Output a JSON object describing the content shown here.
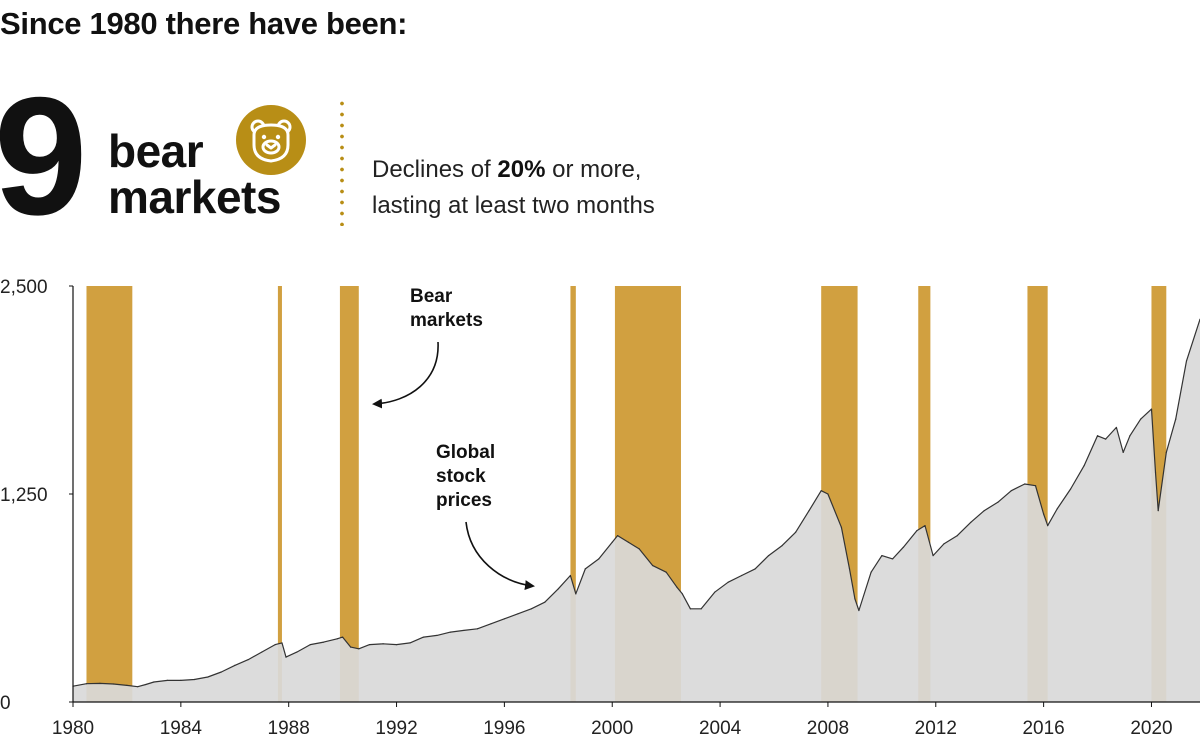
{
  "header": {
    "title": "Since 1980 there have been:",
    "count": "9",
    "count_label_line1": "bear",
    "count_label_line2": "markets",
    "definition_prefix": "Declines of ",
    "definition_bold": "20%",
    "definition_suffix": " or more,",
    "definition_line2": "lasting at least two months"
  },
  "colors": {
    "bear_band": "#d1a040",
    "price_area": "#d9d9d9",
    "price_line": "#333333",
    "accent": "#b88e16"
  },
  "chart_data": {
    "type": "area",
    "title": "",
    "xlabel": "",
    "ylabel": "",
    "xlim": [
      1980,
      2021.8
    ],
    "ylim": [
      0,
      2500
    ],
    "x_ticks": [
      1980,
      1984,
      1988,
      1992,
      1996,
      2000,
      2004,
      2008,
      2012,
      2016,
      2020
    ],
    "y_ticks": [
      {
        "value": 0,
        "label": "0"
      },
      {
        "value": 1250,
        "label": "1,250"
      },
      {
        "value": 2500,
        "label": "2,500"
      }
    ],
    "grid": false,
    "bear_markets": [
      {
        "start": 1980.5,
        "end": 1982.2
      },
      {
        "start": 1987.6,
        "end": 1987.75
      },
      {
        "start": 1989.9,
        "end": 1990.6
      },
      {
        "start": 1998.45,
        "end": 1998.65
      },
      {
        "start": 2000.1,
        "end": 2002.55
      },
      {
        "start": 2007.75,
        "end": 2009.1
      },
      {
        "start": 2011.35,
        "end": 2011.8
      },
      {
        "start": 2015.4,
        "end": 2016.15
      },
      {
        "start": 2020.0,
        "end": 2020.55
      }
    ],
    "series": [
      {
        "x": [
          1980.0,
          1980.5,
          1981.0,
          1981.5,
          1982.0,
          1982.4,
          1982.7,
          1983.0,
          1983.5,
          1984.0,
          1984.5,
          1985.0,
          1985.5,
          1986.0,
          1986.5,
          1987.0,
          1987.5,
          1987.75,
          1987.9,
          1988.3,
          1988.8,
          1989.3,
          1989.8,
          1990.0,
          1990.3,
          1990.6,
          1991.0,
          1991.5,
          1992.0,
          1992.5,
          1993.0,
          1993.5,
          1994.0,
          1994.5,
          1995.0,
          1995.5,
          1996.0,
          1996.5,
          1997.0,
          1997.5,
          1998.0,
          1998.45,
          1998.65,
          1999.0,
          1999.5,
          2000.0,
          2000.2,
          2000.6,
          2001.0,
          2001.5,
          2002.0,
          2002.4,
          2002.6,
          2002.9,
          2003.3,
          2003.8,
          2004.3,
          2004.8,
          2005.3,
          2005.8,
          2006.3,
          2006.8,
          2007.3,
          2007.75,
          2008.0,
          2008.5,
          2008.8,
          2009.0,
          2009.15,
          2009.6,
          2010.0,
          2010.4,
          2010.8,
          2011.3,
          2011.6,
          2011.9,
          2012.3,
          2012.8,
          2013.3,
          2013.8,
          2014.3,
          2014.8,
          2015.3,
          2015.7,
          2016.0,
          2016.15,
          2016.5,
          2017.0,
          2017.5,
          2018.0,
          2018.3,
          2018.7,
          2018.95,
          2019.2,
          2019.6,
          2020.0,
          2020.15,
          2020.25,
          2020.55,
          2020.9,
          2021.3,
          2021.8
        ],
        "values": [
          95,
          110,
          112,
          108,
          100,
          92,
          105,
          120,
          130,
          130,
          135,
          150,
          180,
          220,
          255,
          300,
          345,
          355,
          270,
          300,
          345,
          360,
          380,
          390,
          330,
          320,
          345,
          350,
          345,
          355,
          390,
          400,
          420,
          430,
          440,
          470,
          500,
          530,
          560,
          600,
          680,
          760,
          650,
          800,
          860,
          960,
          1000,
          960,
          920,
          820,
          780,
          690,
          650,
          560,
          560,
          660,
          720,
          760,
          800,
          880,
          940,
          1020,
          1150,
          1270,
          1250,
          1050,
          800,
          620,
          550,
          780,
          880,
          860,
          930,
          1030,
          1060,
          880,
          950,
          1000,
          1080,
          1150,
          1200,
          1270,
          1310,
          1300,
          1130,
          1060,
          1160,
          1280,
          1420,
          1600,
          1580,
          1650,
          1500,
          1600,
          1700,
          1760,
          1380,
          1150,
          1500,
          1700,
          2050,
          2300
        ]
      }
    ],
    "annotations": [
      {
        "label_line1": "Bear",
        "label_line2": "markets",
        "label_line3": ""
      },
      {
        "label_line1": "Global",
        "label_line2": "stock",
        "label_line3": "prices"
      }
    ]
  }
}
